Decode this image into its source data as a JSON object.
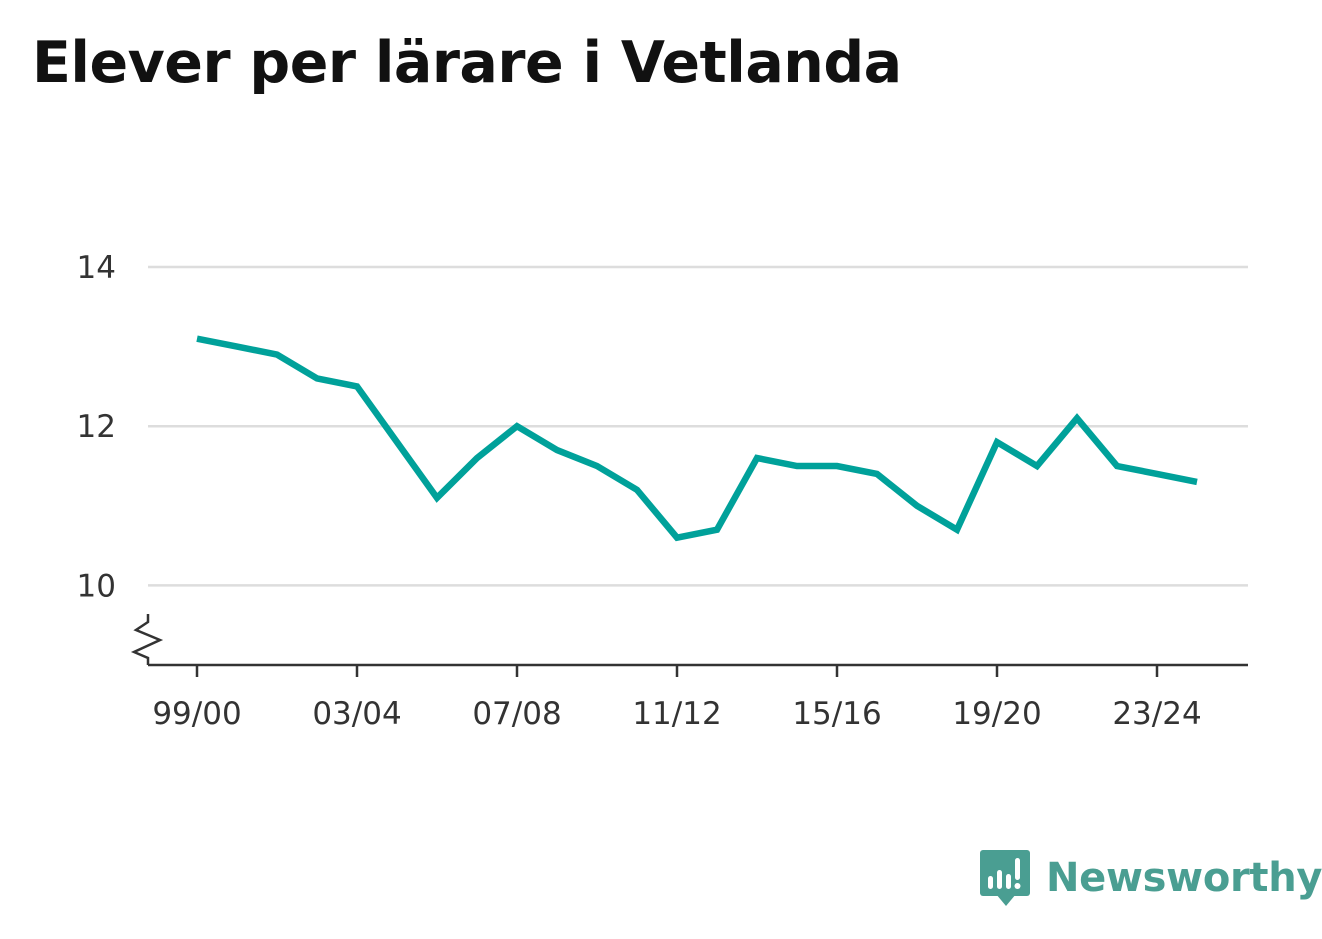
{
  "chart_data": {
    "type": "line",
    "title": "Elever per lärare i Vetlanda",
    "xlabel": "",
    "ylabel": "",
    "ylim": [
      9,
      14
    ],
    "axis_break": true,
    "y_ticks": [
      10,
      12,
      14
    ],
    "x_tick_labels": [
      "99/00",
      "03/04",
      "07/08",
      "11/12",
      "15/16",
      "19/20",
      "23/24"
    ],
    "grid": true,
    "line_color": "#00a19a",
    "x": [
      "99/00",
      "00/01",
      "01/02",
      "02/03",
      "03/04",
      "04/05",
      "05/06",
      "06/07",
      "07/08",
      "08/09",
      "09/10",
      "10/11",
      "11/12",
      "12/13",
      "13/14",
      "14/15",
      "15/16",
      "16/17",
      "17/18",
      "18/19",
      "19/20",
      "20/21",
      "21/22",
      "22/23",
      "23/24",
      "24/25"
    ],
    "series": [
      {
        "values": [
          13.1,
          13.0,
          12.9,
          12.6,
          12.5,
          11.8,
          11.1,
          11.6,
          12.0,
          11.7,
          11.5,
          11.2,
          10.6,
          10.7,
          11.6,
          11.5,
          11.5,
          11.4,
          11.0,
          10.7,
          11.8,
          11.5,
          12.1,
          11.5,
          11.4,
          11.3
        ]
      }
    ]
  },
  "brand": {
    "name": "Newsworthy",
    "icon": "newsworthy-logo-icon",
    "color": "#4a9e92"
  }
}
